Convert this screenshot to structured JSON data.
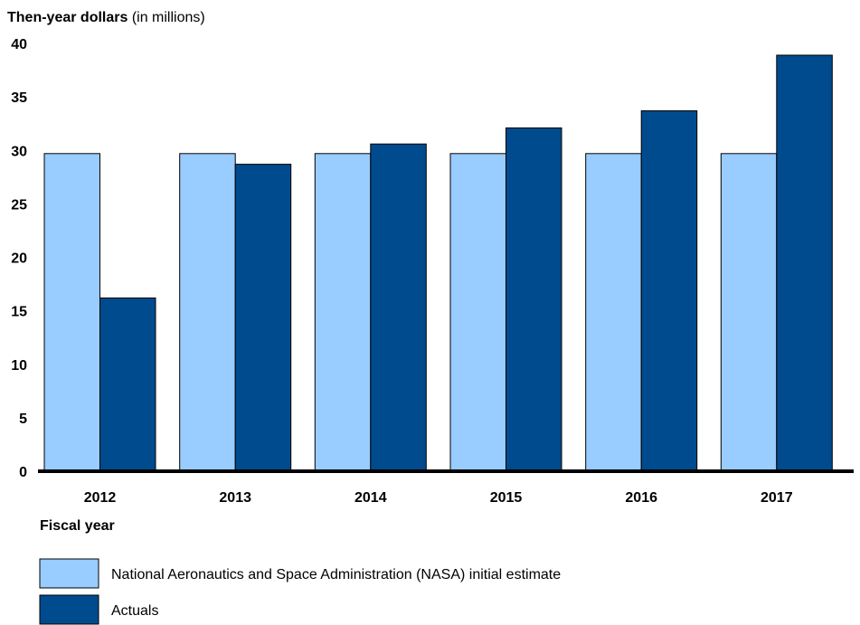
{
  "chart_data": {
    "type": "bar",
    "title": "",
    "ylabel_bold": "Then-year dollars",
    "ylabel_rest": " (in millions)",
    "xlabel": "Fiscal year",
    "categories": [
      "2012",
      "2013",
      "2014",
      "2015",
      "2016",
      "2017"
    ],
    "series": [
      {
        "name": "National Aeronautics and Space Administration (NASA) initial estimate",
        "values": [
          29.7,
          29.7,
          29.7,
          29.7,
          29.7,
          29.7
        ],
        "color": "#99ccff"
      },
      {
        "name": "Actuals",
        "values": [
          16.2,
          28.7,
          30.6,
          32.1,
          33.7,
          38.9
        ],
        "color": "#004b8d"
      }
    ],
    "ylim": [
      0,
      40
    ],
    "yticks": [
      0,
      5,
      10,
      15,
      20,
      25,
      30,
      35,
      40
    ],
    "grid": false,
    "legend_position": "bottom-left"
  }
}
